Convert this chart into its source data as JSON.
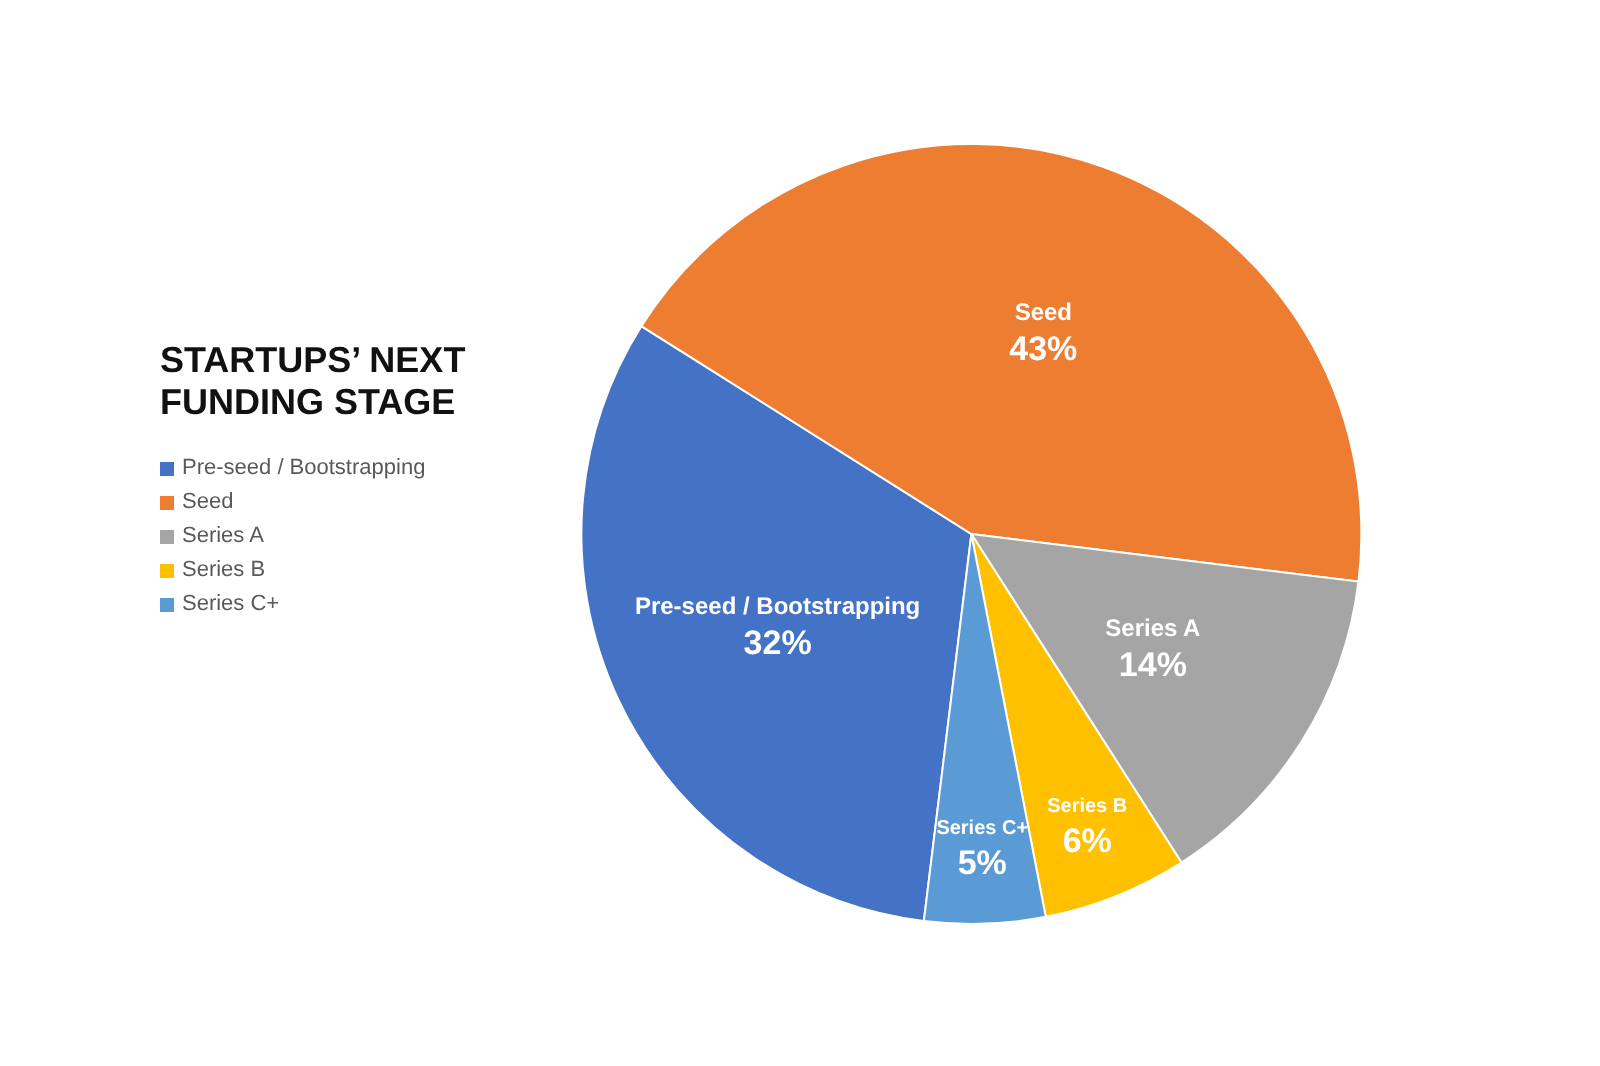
{
  "chart_data": {
    "type": "pie",
    "title": "STARTUPS’ NEXT FUNDING STAGE",
    "categories": [
      "Pre-seed / Bootstrapping",
      "Seed",
      "Series A",
      "Series B",
      "Series C+"
    ],
    "values": [
      32,
      43,
      14,
      6,
      5
    ],
    "value_labels": [
      "32%",
      "43%",
      "14%",
      "6%",
      "5%"
    ],
    "colors": [
      "#4472c4",
      "#ed7d31",
      "#a5a5a5",
      "#ffc000",
      "#5b9bd5"
    ],
    "legend": "left"
  }
}
